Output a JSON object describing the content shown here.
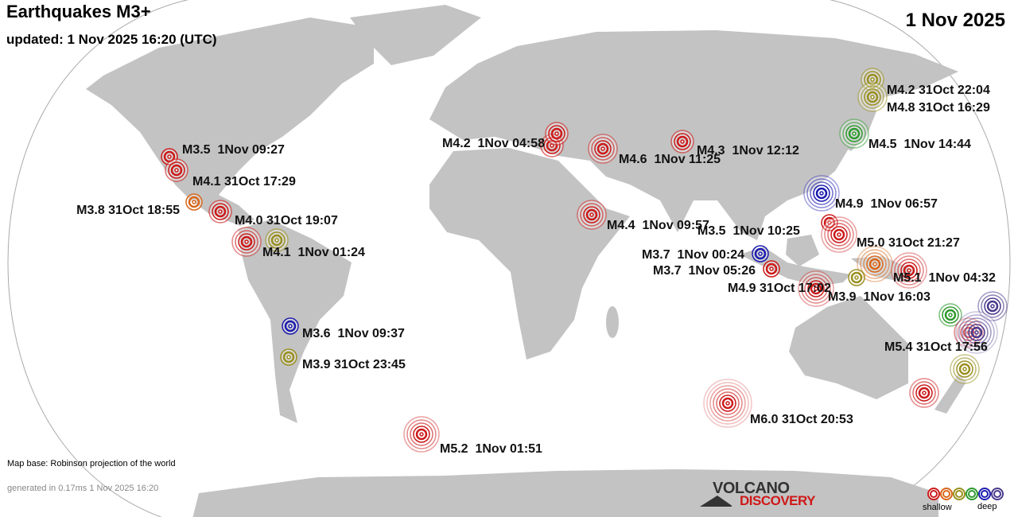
{
  "header": {
    "title": "Earthquakes M3+",
    "updated": "updated:  1 Nov 2025 16:20 (UTC)",
    "date": "1 Nov 2025"
  },
  "depth_colors": {
    "red": "#cc1a1a",
    "orange": "#d8671a",
    "olive": "#9a9020",
    "green": "#2f9a2f",
    "blue": "#1c1cb0",
    "purple": "#4a3a8c"
  },
  "land_color": "#c3c3c3",
  "quakes": [
    {
      "label": "M3.5  1Nov 09:27",
      "mag": 3.5,
      "depth": "red"
    },
    {
      "label": "M4.1 31Oct 17:29",
      "mag": 4.1,
      "depth": "red"
    },
    {
      "label": "M3.8 31Oct 18:55",
      "mag": 3.8,
      "depth": "orange"
    },
    {
      "label": "M4.0 31Oct 19:07",
      "mag": 4.0,
      "depth": "red"
    },
    {
      "label": "M4.1  1Nov 01:24",
      "mag": 4.1,
      "depth": "olive"
    },
    {
      "label": "M3.6  1Nov 09:37",
      "mag": 3.6,
      "depth": "blue"
    },
    {
      "label": "M3.9 31Oct 23:45",
      "mag": 3.9,
      "depth": "olive"
    },
    {
      "label": "M5.2  1Nov 01:51",
      "mag": 5.2,
      "depth": "red"
    },
    {
      "label": "M4.2  1Nov 04:58",
      "mag": 4.2,
      "depth": "red"
    },
    {
      "label": "M4.6  1Nov 11:25",
      "mag": 4.6,
      "depth": "red"
    },
    {
      "label": "M4.3  1Nov 12:12",
      "mag": 4.3,
      "depth": "red"
    },
    {
      "label": "M4.4  1Nov 09:57",
      "mag": 4.4,
      "depth": "red"
    },
    {
      "label": "M4.2 31Oct 22:04",
      "mag": 4.2,
      "depth": "olive"
    },
    {
      "label": "M4.8 31Oct 16:29",
      "mag": 4.8,
      "depth": "olive"
    },
    {
      "label": "M4.5  1Nov 14:44",
      "mag": 4.5,
      "depth": "green"
    },
    {
      "label": "M4.9  1Nov 06:57",
      "mag": 4.9,
      "depth": "blue"
    },
    {
      "label": "M3.5  1Nov 10:25",
      "mag": 3.5,
      "depth": "red"
    },
    {
      "label": "M5.0 31Oct 21:27",
      "mag": 5.0,
      "depth": "red"
    },
    {
      "label": "M3.7  1Nov 00:24",
      "mag": 3.7,
      "depth": "blue"
    },
    {
      "label": "M3.7  1Nov 05:26",
      "mag": 3.7,
      "depth": "red"
    },
    {
      "label": "M4.9 31Oct 17:02",
      "mag": 4.9,
      "depth": "red"
    },
    {
      "label": "M3.9  1Nov 16:03",
      "mag": 3.9,
      "depth": "olive"
    },
    {
      "label": "M5.1  1Nov 04:32",
      "mag": 5.1,
      "depth": "red"
    },
    {
      "label": "M5.4 31Oct 17:56",
      "mag": 5.4,
      "depth": "purple"
    },
    {
      "label": "M6.0 31Oct 20:53",
      "mag": 6.0,
      "depth": "red"
    }
  ],
  "unlabeled_quakes": [
    {
      "depth": "red"
    },
    {
      "depth": "red"
    },
    {
      "depth": "orange"
    },
    {
      "depth": "red"
    },
    {
      "depth": "purple"
    },
    {
      "depth": "green"
    },
    {
      "depth": "olive"
    },
    {
      "depth": "red"
    }
  ],
  "footer": {
    "map_base": "Map base: Robinson projection of the world",
    "generated": "generated in 0.17ms  1 Nov 2025 16:20",
    "logo_line1": "VOLCANO",
    "logo_line2": "DISCOVERY",
    "legend_shallow": "shallow",
    "legend_deep": "deep",
    "legend_colors": [
      "red",
      "orange",
      "olive",
      "green",
      "blue",
      "purple"
    ]
  }
}
